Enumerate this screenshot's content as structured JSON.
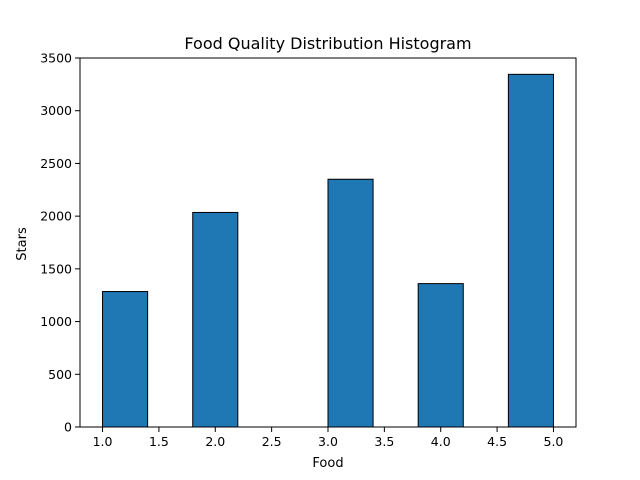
{
  "chart_data": {
    "type": "bar",
    "title": "Food Quality Distribution Histogram",
    "xlabel": "Food",
    "ylabel": "Stars",
    "xlim": [
      0.8,
      5.2
    ],
    "ylim": [
      0,
      3500
    ],
    "xticks": [
      1.0,
      1.5,
      2.0,
      2.5,
      3.0,
      3.5,
      4.0,
      4.5,
      5.0
    ],
    "xtick_labels": [
      "1.0",
      "1.5",
      "2.0",
      "2.5",
      "3.0",
      "3.5",
      "4.0",
      "4.5",
      "5.0"
    ],
    "yticks": [
      0,
      500,
      1000,
      1500,
      2000,
      2500,
      3000,
      3500
    ],
    "ytick_labels": [
      "0",
      "500",
      "1000",
      "1500",
      "2000",
      "2500",
      "3000",
      "3500"
    ],
    "bins": [
      {
        "start": 1.0,
        "end": 1.4,
        "value": 1285
      },
      {
        "start": 1.4,
        "end": 1.8,
        "value": 0
      },
      {
        "start": 1.8,
        "end": 2.2,
        "value": 2035
      },
      {
        "start": 2.2,
        "end": 2.6,
        "value": 0
      },
      {
        "start": 2.6,
        "end": 3.0,
        "value": 0
      },
      {
        "start": 3.0,
        "end": 3.4,
        "value": 2350
      },
      {
        "start": 3.4,
        "end": 3.8,
        "value": 0
      },
      {
        "start": 3.8,
        "end": 4.2,
        "value": 1360
      },
      {
        "start": 4.2,
        "end": 4.6,
        "value": 0
      },
      {
        "start": 4.6,
        "end": 5.0,
        "value": 3345
      }
    ],
    "bar_color": "#1f77b4",
    "edge_color": "#000000",
    "grid": false
  }
}
